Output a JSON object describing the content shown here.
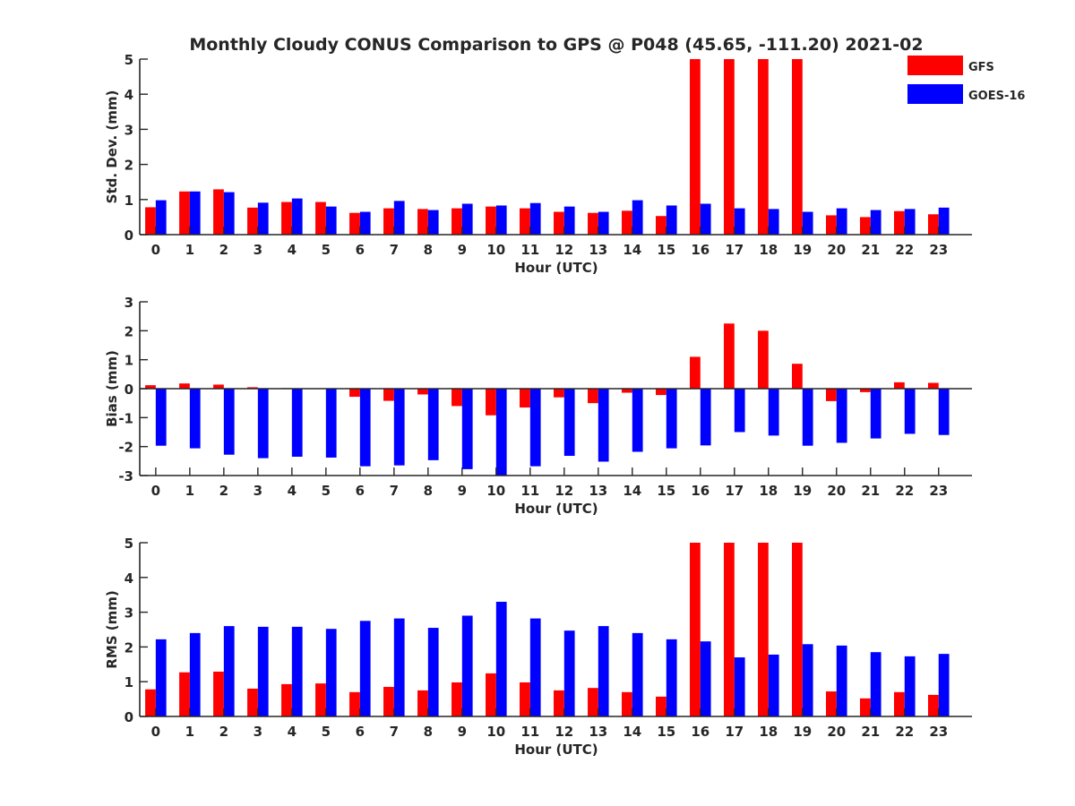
{
  "title": "Monthly Cloudy CONUS Comparison to GPS @ P048 (45.65, -111.20) 2021-02",
  "legend": {
    "placement": "top-right",
    "entries": [
      {
        "label": "GFS",
        "color": "#ff0000"
      },
      {
        "label": "GOES-16",
        "color": "#0000ff"
      }
    ]
  },
  "chart_data": [
    {
      "type": "bar",
      "xlabel": "Hour (UTC)",
      "ylabel": "Std. Dev. (mm)",
      "ylim": [
        0,
        5
      ],
      "yticks": [
        0,
        1,
        2,
        3,
        4,
        5
      ],
      "categories": [
        "0",
        "1",
        "2",
        "3",
        "4",
        "5",
        "6",
        "7",
        "8",
        "9",
        "10",
        "11",
        "12",
        "13",
        "14",
        "15",
        "16",
        "17",
        "18",
        "19",
        "20",
        "21",
        "22",
        "23"
      ],
      "series": [
        {
          "name": "GFS",
          "color": "#ff0000",
          "values": [
            0.78,
            1.23,
            1.29,
            0.77,
            0.93,
            0.93,
            0.62,
            0.75,
            0.73,
            0.75,
            0.8,
            0.75,
            0.65,
            0.62,
            0.68,
            0.53,
            5,
            5,
            5,
            5,
            0.55,
            0.5,
            0.67,
            0.58
          ]
        },
        {
          "name": "GOES-16",
          "color": "#0000ff",
          "values": [
            0.98,
            1.23,
            1.21,
            0.91,
            1.03,
            0.8,
            0.65,
            0.96,
            0.7,
            0.88,
            0.83,
            0.9,
            0.8,
            0.65,
            0.98,
            0.83,
            0.88,
            0.75,
            0.73,
            0.65,
            0.75,
            0.7,
            0.73,
            0.77
          ]
        }
      ]
    },
    {
      "type": "bar",
      "xlabel": "Hour (UTC)",
      "ylabel": "Bias (mm)",
      "ylim": [
        -3,
        3
      ],
      "yticks": [
        -3,
        -2,
        -1,
        0,
        1,
        2,
        3
      ],
      "categories": [
        "0",
        "1",
        "2",
        "3",
        "4",
        "5",
        "6",
        "7",
        "8",
        "9",
        "10",
        "11",
        "12",
        "13",
        "14",
        "15",
        "16",
        "17",
        "18",
        "19",
        "20",
        "21",
        "22",
        "23"
      ],
      "series": [
        {
          "name": "GFS",
          "color": "#ff0000",
          "values": [
            0.12,
            0.18,
            0.14,
            0.05,
            0.02,
            0,
            -0.28,
            -0.42,
            -0.2,
            -0.6,
            -0.92,
            -0.65,
            -0.3,
            -0.5,
            -0.14,
            -0.22,
            1.1,
            2.25,
            2.0,
            0.86,
            -0.43,
            -0.12,
            0.22,
            0.2
          ]
        },
        {
          "name": "GOES-16",
          "color": "#0000ff",
          "values": [
            -1.97,
            -2.06,
            -2.28,
            -2.4,
            -2.35,
            -2.38,
            -2.68,
            -2.65,
            -2.47,
            -2.78,
            -3,
            -2.68,
            -2.32,
            -2.52,
            -2.18,
            -2.06,
            -1.96,
            -1.5,
            -1.62,
            -1.97,
            -1.87,
            -1.72,
            -1.56,
            -1.6
          ]
        }
      ]
    },
    {
      "type": "bar",
      "xlabel": "Hour (UTC)",
      "ylabel": "RMS (mm)",
      "ylim": [
        0,
        5
      ],
      "yticks": [
        0,
        1,
        2,
        3,
        4,
        5
      ],
      "categories": [
        "0",
        "1",
        "2",
        "3",
        "4",
        "5",
        "6",
        "7",
        "8",
        "9",
        "10",
        "11",
        "12",
        "13",
        "14",
        "15",
        "16",
        "17",
        "18",
        "19",
        "20",
        "21",
        "22",
        "23"
      ],
      "series": [
        {
          "name": "GFS",
          "color": "#ff0000",
          "values": [
            0.78,
            1.27,
            1.29,
            0.8,
            0.93,
            0.95,
            0.7,
            0.85,
            0.75,
            0.98,
            1.24,
            0.98,
            0.75,
            0.82,
            0.7,
            0.57,
            5,
            5,
            5,
            5,
            0.72,
            0.52,
            0.7,
            0.62
          ]
        },
        {
          "name": "GOES-16",
          "color": "#0000ff",
          "values": [
            2.22,
            2.4,
            2.6,
            2.58,
            2.58,
            2.52,
            2.75,
            2.82,
            2.55,
            2.9,
            3.3,
            2.82,
            2.47,
            2.6,
            2.4,
            2.22,
            2.16,
            1.7,
            1.78,
            2.08,
            2.04,
            1.85,
            1.73,
            1.8
          ]
        }
      ]
    }
  ]
}
